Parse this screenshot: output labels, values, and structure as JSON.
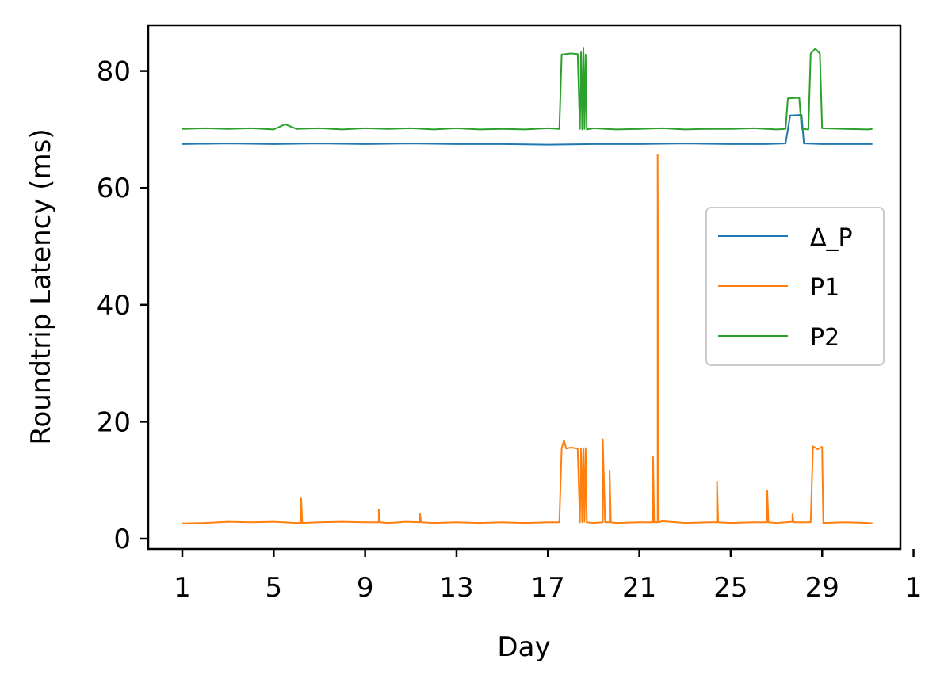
{
  "chart_data": {
    "type": "line",
    "title": "",
    "xlabel": "Day",
    "ylabel": "Roundtrip Latency (ms)",
    "x_ticks": [
      "1",
      "5",
      "9",
      "13",
      "17",
      "21",
      "25",
      "29",
      "1"
    ],
    "x_range_days": [
      1,
      32
    ],
    "y_ticks": [
      "0",
      "20",
      "40",
      "60",
      "80"
    ],
    "ylim": [
      -1.8,
      88
    ],
    "grid": false,
    "legend_position": "center-right",
    "series": [
      {
        "name": "Δ_P",
        "color": "#1f77b4",
        "points": [
          [
            1,
            67.5
          ],
          [
            3,
            67.6
          ],
          [
            5,
            67.5
          ],
          [
            7,
            67.6
          ],
          [
            9,
            67.5
          ],
          [
            11,
            67.6
          ],
          [
            13,
            67.5
          ],
          [
            15,
            67.5
          ],
          [
            17,
            67.4
          ],
          [
            19,
            67.5
          ],
          [
            21,
            67.5
          ],
          [
            23,
            67.6
          ],
          [
            25,
            67.5
          ],
          [
            26.5,
            67.5
          ],
          [
            27.4,
            67.6
          ],
          [
            27.6,
            72.4
          ],
          [
            28.1,
            72.5
          ],
          [
            28.2,
            67.6
          ],
          [
            29,
            67.5
          ],
          [
            30,
            67.5
          ],
          [
            31.2,
            67.5
          ]
        ]
      },
      {
        "name": "P1",
        "color": "#ff7f0e",
        "points": [
          [
            1,
            2.6
          ],
          [
            2,
            2.7
          ],
          [
            3,
            2.9
          ],
          [
            4,
            2.8
          ],
          [
            5,
            2.9
          ],
          [
            6,
            2.7
          ],
          [
            6.2,
            2.7
          ],
          [
            6.2,
            6.9
          ],
          [
            6.25,
            2.7
          ],
          [
            7,
            2.8
          ],
          [
            8,
            2.9
          ],
          [
            9,
            2.8
          ],
          [
            9.6,
            2.8
          ],
          [
            9.6,
            5.0
          ],
          [
            9.65,
            2.8
          ],
          [
            10,
            2.7
          ],
          [
            10.8,
            2.9
          ],
          [
            11.4,
            2.8
          ],
          [
            11.4,
            4.3
          ],
          [
            11.45,
            2.8
          ],
          [
            12,
            2.7
          ],
          [
            13,
            2.8
          ],
          [
            14,
            2.7
          ],
          [
            15,
            2.8
          ],
          [
            16,
            2.7
          ],
          [
            17,
            2.8
          ],
          [
            17.5,
            2.8
          ],
          [
            17.6,
            15.5
          ],
          [
            17.7,
            16.8
          ],
          [
            17.8,
            15.4
          ],
          [
            18,
            15.6
          ],
          [
            18.3,
            15.4
          ],
          [
            18.4,
            2.8
          ],
          [
            18.45,
            15.5
          ],
          [
            18.5,
            2.8
          ],
          [
            18.55,
            15.4
          ],
          [
            18.6,
            2.9
          ],
          [
            18.65,
            15.5
          ],
          [
            18.7,
            2.8
          ],
          [
            19,
            2.7
          ],
          [
            19.4,
            2.8
          ],
          [
            19.4,
            17.0
          ],
          [
            19.5,
            2.8
          ],
          [
            19.7,
            2.8
          ],
          [
            19.7,
            11.7
          ],
          [
            19.75,
            2.8
          ],
          [
            20,
            2.7
          ],
          [
            21,
            2.8
          ],
          [
            21.6,
            2.8
          ],
          [
            21.6,
            14.0
          ],
          [
            21.65,
            2.8
          ],
          [
            21.8,
            2.8
          ],
          [
            21.8,
            65.7
          ],
          [
            21.85,
            2.8
          ],
          [
            22,
            3.0
          ],
          [
            23,
            2.7
          ],
          [
            24,
            2.8
          ],
          [
            24.4,
            2.8
          ],
          [
            24.4,
            9.8
          ],
          [
            24.45,
            2.8
          ],
          [
            25,
            2.7
          ],
          [
            26,
            2.8
          ],
          [
            26.6,
            2.8
          ],
          [
            26.6,
            8.2
          ],
          [
            26.65,
            2.8
          ],
          [
            27,
            2.7
          ],
          [
            27.7,
            2.9
          ],
          [
            27.7,
            4.2
          ],
          [
            27.75,
            2.8
          ],
          [
            28.5,
            2.8
          ],
          [
            28.6,
            15.8
          ],
          [
            28.8,
            15.3
          ],
          [
            29,
            15.7
          ],
          [
            29.05,
            2.7
          ],
          [
            30,
            2.8
          ],
          [
            31,
            2.7
          ],
          [
            31.2,
            2.6
          ]
        ]
      },
      {
        "name": "P2",
        "color": "#2ca02c",
        "points": [
          [
            1,
            70.1
          ],
          [
            2,
            70.2
          ],
          [
            3,
            70.1
          ],
          [
            4,
            70.2
          ],
          [
            5,
            70.0
          ],
          [
            5.5,
            70.9
          ],
          [
            6,
            70.1
          ],
          [
            7,
            70.2
          ],
          [
            8,
            70.0
          ],
          [
            9,
            70.2
          ],
          [
            10,
            70.1
          ],
          [
            11,
            70.2
          ],
          [
            12,
            70.0
          ],
          [
            13,
            70.2
          ],
          [
            14,
            70.0
          ],
          [
            15,
            70.1
          ],
          [
            16,
            70.0
          ],
          [
            17,
            70.2
          ],
          [
            17.5,
            70.1
          ],
          [
            17.6,
            82.8
          ],
          [
            18,
            83.0
          ],
          [
            18.3,
            82.9
          ],
          [
            18.4,
            70.1
          ],
          [
            18.45,
            83.2
          ],
          [
            18.5,
            70.0
          ],
          [
            18.55,
            84.0
          ],
          [
            18.6,
            70.1
          ],
          [
            18.65,
            82.8
          ],
          [
            18.7,
            70.0
          ],
          [
            19,
            70.2
          ],
          [
            20,
            70.0
          ],
          [
            21,
            70.1
          ],
          [
            22,
            70.2
          ],
          [
            23,
            70.0
          ],
          [
            24,
            70.1
          ],
          [
            25,
            70.1
          ],
          [
            26,
            70.2
          ],
          [
            27,
            70.0
          ],
          [
            27.4,
            70.1
          ],
          [
            27.5,
            75.3
          ],
          [
            28.0,
            75.4
          ],
          [
            28.1,
            70.1
          ],
          [
            28.4,
            70.0
          ],
          [
            28.5,
            83.0
          ],
          [
            28.7,
            83.8
          ],
          [
            28.9,
            83.0
          ],
          [
            29,
            70.2
          ],
          [
            30,
            70.1
          ],
          [
            31,
            70.0
          ],
          [
            31.2,
            70.1
          ]
        ]
      }
    ]
  }
}
